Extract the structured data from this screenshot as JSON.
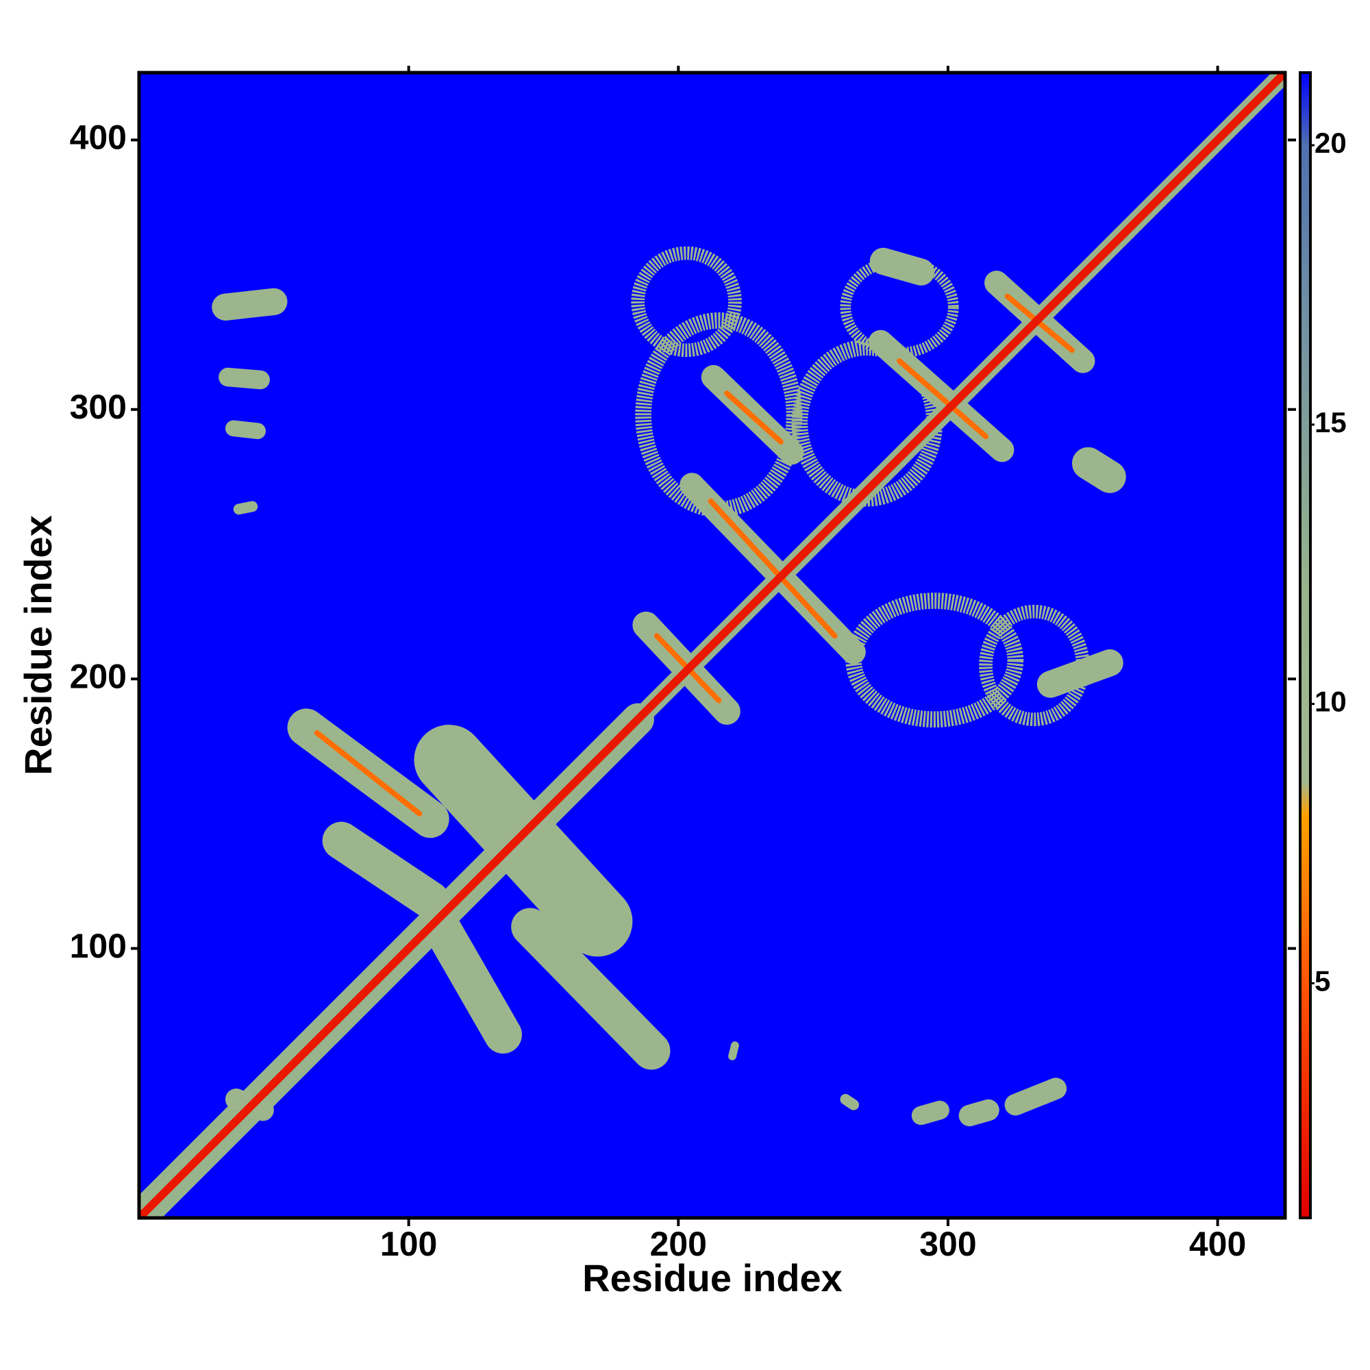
{
  "chart_data": {
    "type": "contact_map",
    "xlabel": "Residue index",
    "ylabel": "Residue index",
    "xlim": [
      0,
      425
    ],
    "ylim": [
      0,
      425
    ],
    "xticks": [
      100,
      200,
      300,
      400
    ],
    "yticks": [
      100,
      200,
      300,
      400
    ],
    "clim": [
      0.8,
      21.3
    ],
    "cticks": [
      5,
      10,
      15,
      20
    ],
    "background_value": 21.3,
    "colorscale": [
      [
        0.8,
        "#e00000"
      ],
      [
        5,
        "#ff5500"
      ],
      [
        8,
        "#ffa000"
      ],
      [
        8.6,
        "#a4b890"
      ],
      [
        12,
        "#98b48c"
      ],
      [
        17,
        "#7090a4"
      ],
      [
        20,
        "#5070b0"
      ],
      [
        21.3,
        "#0000ff"
      ]
    ],
    "segments": [
      {
        "from": [
          3,
          3
        ],
        "to": [
          185,
          185
        ],
        "value": 12,
        "width": 12
      },
      {
        "from": [
          185,
          185
        ],
        "to": [
          425,
          425
        ],
        "value": 12,
        "width": 7
      },
      {
        "from": [
          62,
          182
        ],
        "to": [
          108,
          148
        ],
        "value": 11,
        "width": 14
      },
      {
        "from": [
          75,
          140
        ],
        "to": [
          108,
          118
        ],
        "value": 11,
        "width": 14
      },
      {
        "from": [
          115,
          170
        ],
        "to": [
          170,
          110
        ],
        "value": 11,
        "width": 26
      },
      {
        "from": [
          112,
          108
        ],
        "to": [
          135,
          68
        ],
        "value": 11,
        "width": 14
      },
      {
        "from": [
          145,
          108
        ],
        "to": [
          190,
          62
        ],
        "value": 11,
        "width": 14
      },
      {
        "from": [
          36,
          44
        ],
        "to": [
          46,
          40
        ],
        "value": 11,
        "width": 8
      },
      {
        "from": [
          32,
          338
        ],
        "to": [
          50,
          340
        ],
        "value": 11,
        "width": 10
      },
      {
        "from": [
          33,
          312
        ],
        "to": [
          45,
          311
        ],
        "value": 11,
        "width": 7
      },
      {
        "from": [
          35,
          293
        ],
        "to": [
          44,
          292
        ],
        "value": 11,
        "width": 6
      },
      {
        "from": [
          37,
          263
        ],
        "to": [
          42,
          264
        ],
        "value": 11,
        "width": 4
      },
      {
        "from": [
          325,
          42
        ],
        "to": [
          340,
          48
        ],
        "value": 11,
        "width": 8
      },
      {
        "from": [
          308,
          38
        ],
        "to": [
          315,
          40
        ],
        "value": 11,
        "width": 8
      },
      {
        "from": [
          290,
          38
        ],
        "to": [
          297,
          40
        ],
        "value": 11,
        "width": 7
      },
      {
        "from": [
          262,
          44
        ],
        "to": [
          265,
          42
        ],
        "value": 11,
        "width": 4
      },
      {
        "from": [
          220,
          60
        ],
        "to": [
          221,
          64
        ],
        "value": 11,
        "width": 3
      },
      {
        "from": [
          188,
          220
        ],
        "to": [
          218,
          188
        ],
        "value": 11,
        "width": 10
      },
      {
        "from": [
          205,
          272
        ],
        "to": [
          265,
          210
        ],
        "value": 11,
        "width": 9
      },
      {
        "from": [
          275,
          325
        ],
        "to": [
          320,
          285
        ],
        "value": 11,
        "width": 9
      },
      {
        "from": [
          318,
          347
        ],
        "to": [
          350,
          318
        ],
        "value": 11,
        "width": 9
      },
      {
        "from": [
          213,
          312
        ],
        "to": [
          242,
          284
        ],
        "value": 11,
        "width": 9
      },
      {
        "from": [
          276,
          355
        ],
        "to": [
          290,
          351
        ],
        "value": 11,
        "width": 10
      },
      {
        "from": [
          352,
          280
        ],
        "to": [
          360,
          275
        ],
        "value": 11,
        "width": 12
      },
      {
        "from": [
          338,
          198
        ],
        "to": [
          360,
          206
        ],
        "value": 11,
        "width": 10
      },
      {
        "from": [
          66,
          180
        ],
        "to": [
          104,
          150
        ],
        "value": 6,
        "width": 2
      },
      {
        "from": [
          192,
          216
        ],
        "to": [
          215,
          192
        ],
        "value": 6,
        "width": 2
      },
      {
        "from": [
          212,
          266
        ],
        "to": [
          258,
          216
        ],
        "value": 6,
        "width": 2
      },
      {
        "from": [
          282,
          318
        ],
        "to": [
          314,
          290
        ],
        "value": 6,
        "width": 2
      },
      {
        "from": [
          322,
          342
        ],
        "to": [
          346,
          322
        ],
        "value": 6,
        "width": 2
      },
      {
        "from": [
          218,
          306
        ],
        "to": [
          238,
          288
        ],
        "value": 6,
        "width": 2
      },
      {
        "from": [
          0,
          0
        ],
        "to": [
          425,
          425
        ],
        "value": 2,
        "width": 3
      }
    ],
    "rings": [
      {
        "x": 215,
        "y": 298,
        "rx": 28,
        "ry": 35,
        "value": 11,
        "width": 6
      },
      {
        "x": 270,
        "y": 295,
        "rx": 25,
        "ry": 28,
        "value": 11,
        "width": 6
      },
      {
        "x": 295,
        "y": 207,
        "rx": 30,
        "ry": 22,
        "value": 11,
        "width": 6
      },
      {
        "x": 332,
        "y": 205,
        "rx": 18,
        "ry": 20,
        "value": 11,
        "width": 5
      },
      {
        "x": 203,
        "y": 340,
        "rx": 18,
        "ry": 18,
        "value": 11,
        "width": 5
      },
      {
        "x": 282,
        "y": 338,
        "rx": 20,
        "ry": 17,
        "value": 11,
        "width": 4
      }
    ]
  }
}
